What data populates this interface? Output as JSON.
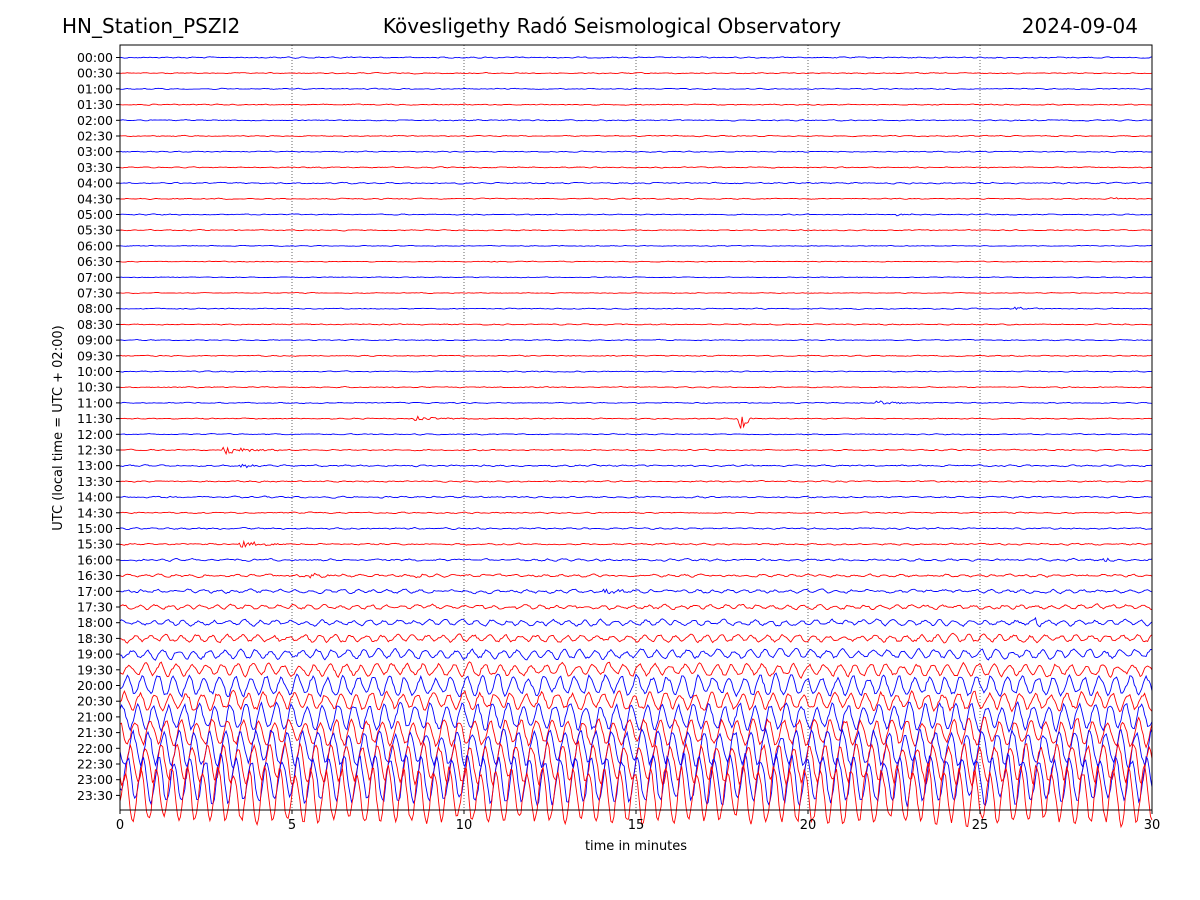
{
  "header": {
    "station": "HN_Station_PSZI2",
    "observatory": "Kövesligethy Radó Seismological Observatory",
    "date": "2024-09-04"
  },
  "chart_data": {
    "type": "line",
    "title": "Kövesligethy Radó Seismological Observatory",
    "xlabel": "time in minutes",
    "ylabel": "UTC (local time = UTC + 02:00)",
    "xlim": [
      0,
      30
    ],
    "x_ticks": [
      0,
      5,
      10,
      15,
      20,
      25,
      30
    ],
    "vertical_gridlines_at": [
      5,
      10,
      15,
      20,
      25
    ],
    "grid": "vertical dotted",
    "row_labels": [
      "00:00",
      "00:30",
      "01:00",
      "01:30",
      "02:00",
      "02:30",
      "03:00",
      "03:30",
      "04:00",
      "04:30",
      "05:00",
      "05:30",
      "06:00",
      "06:30",
      "07:00",
      "07:30",
      "08:00",
      "08:30",
      "09:00",
      "09:30",
      "10:00",
      "10:30",
      "11:00",
      "11:30",
      "12:00",
      "12:30",
      "13:00",
      "13:30",
      "14:00",
      "14:30",
      "15:00",
      "15:30",
      "16:00",
      "16:30",
      "17:00",
      "17:30",
      "18:00",
      "18:30",
      "19:00",
      "19:30",
      "20:00",
      "20:30",
      "21:00",
      "21:30",
      "22:00",
      "22:30",
      "23:00",
      "23:30"
    ],
    "row_colors": [
      "#0000ff",
      "#ff0000"
    ],
    "row_noise_level": [
      1.2,
      1,
      1,
      1,
      1.1,
      1,
      1,
      1,
      1.2,
      1,
      1,
      1,
      0.8,
      0.8,
      0.8,
      0.8,
      1,
      1,
      1,
      1,
      1,
      1,
      1,
      1,
      1,
      1.2,
      1.4,
      1.2,
      1.4,
      1.2,
      1.4,
      1.4,
      1.8,
      2,
      2.5,
      3,
      3.5,
      4,
      4.5,
      5.5,
      7,
      6.5,
      8,
      8,
      9.5,
      10,
      11,
      12
    ],
    "events": [
      {
        "row": 23,
        "minute": 18.0,
        "amplitude": 22,
        "duration": 0.15
      },
      {
        "row": 25,
        "minute": 3.0,
        "amplitude": 6,
        "duration": 0.6
      },
      {
        "row": 23,
        "minute": 8.5,
        "amplitude": 3,
        "duration": 0.5
      },
      {
        "row": 31,
        "minute": 3.5,
        "amplitude": 3.5,
        "duration": 0.6
      },
      {
        "row": 33,
        "minute": 5.2,
        "amplitude": 3,
        "duration": 0.6
      },
      {
        "row": 33,
        "minute": 8.6,
        "amplitude": 4,
        "duration": 0.2
      },
      {
        "row": 22,
        "minute": 22.0,
        "amplitude": 3,
        "duration": 0.4
      },
      {
        "row": 9,
        "minute": 28.7,
        "amplitude": 3,
        "duration": 0.2
      },
      {
        "row": 10,
        "minute": 22.6,
        "amplitude": 2,
        "duration": 0.3
      },
      {
        "row": 26,
        "minute": 3.5,
        "amplitude": 3,
        "duration": 0.4
      },
      {
        "row": 32,
        "minute": 28.6,
        "amplitude": 3,
        "duration": 0.3
      },
      {
        "row": 16,
        "minute": 26.0,
        "amplitude": 2.5,
        "duration": 0.3
      },
      {
        "row": 36,
        "minute": 26.6,
        "amplitude": 4,
        "duration": 0.2
      },
      {
        "row": 34,
        "minute": 14.0,
        "amplitude": 2.5,
        "duration": 0.8
      }
    ]
  }
}
